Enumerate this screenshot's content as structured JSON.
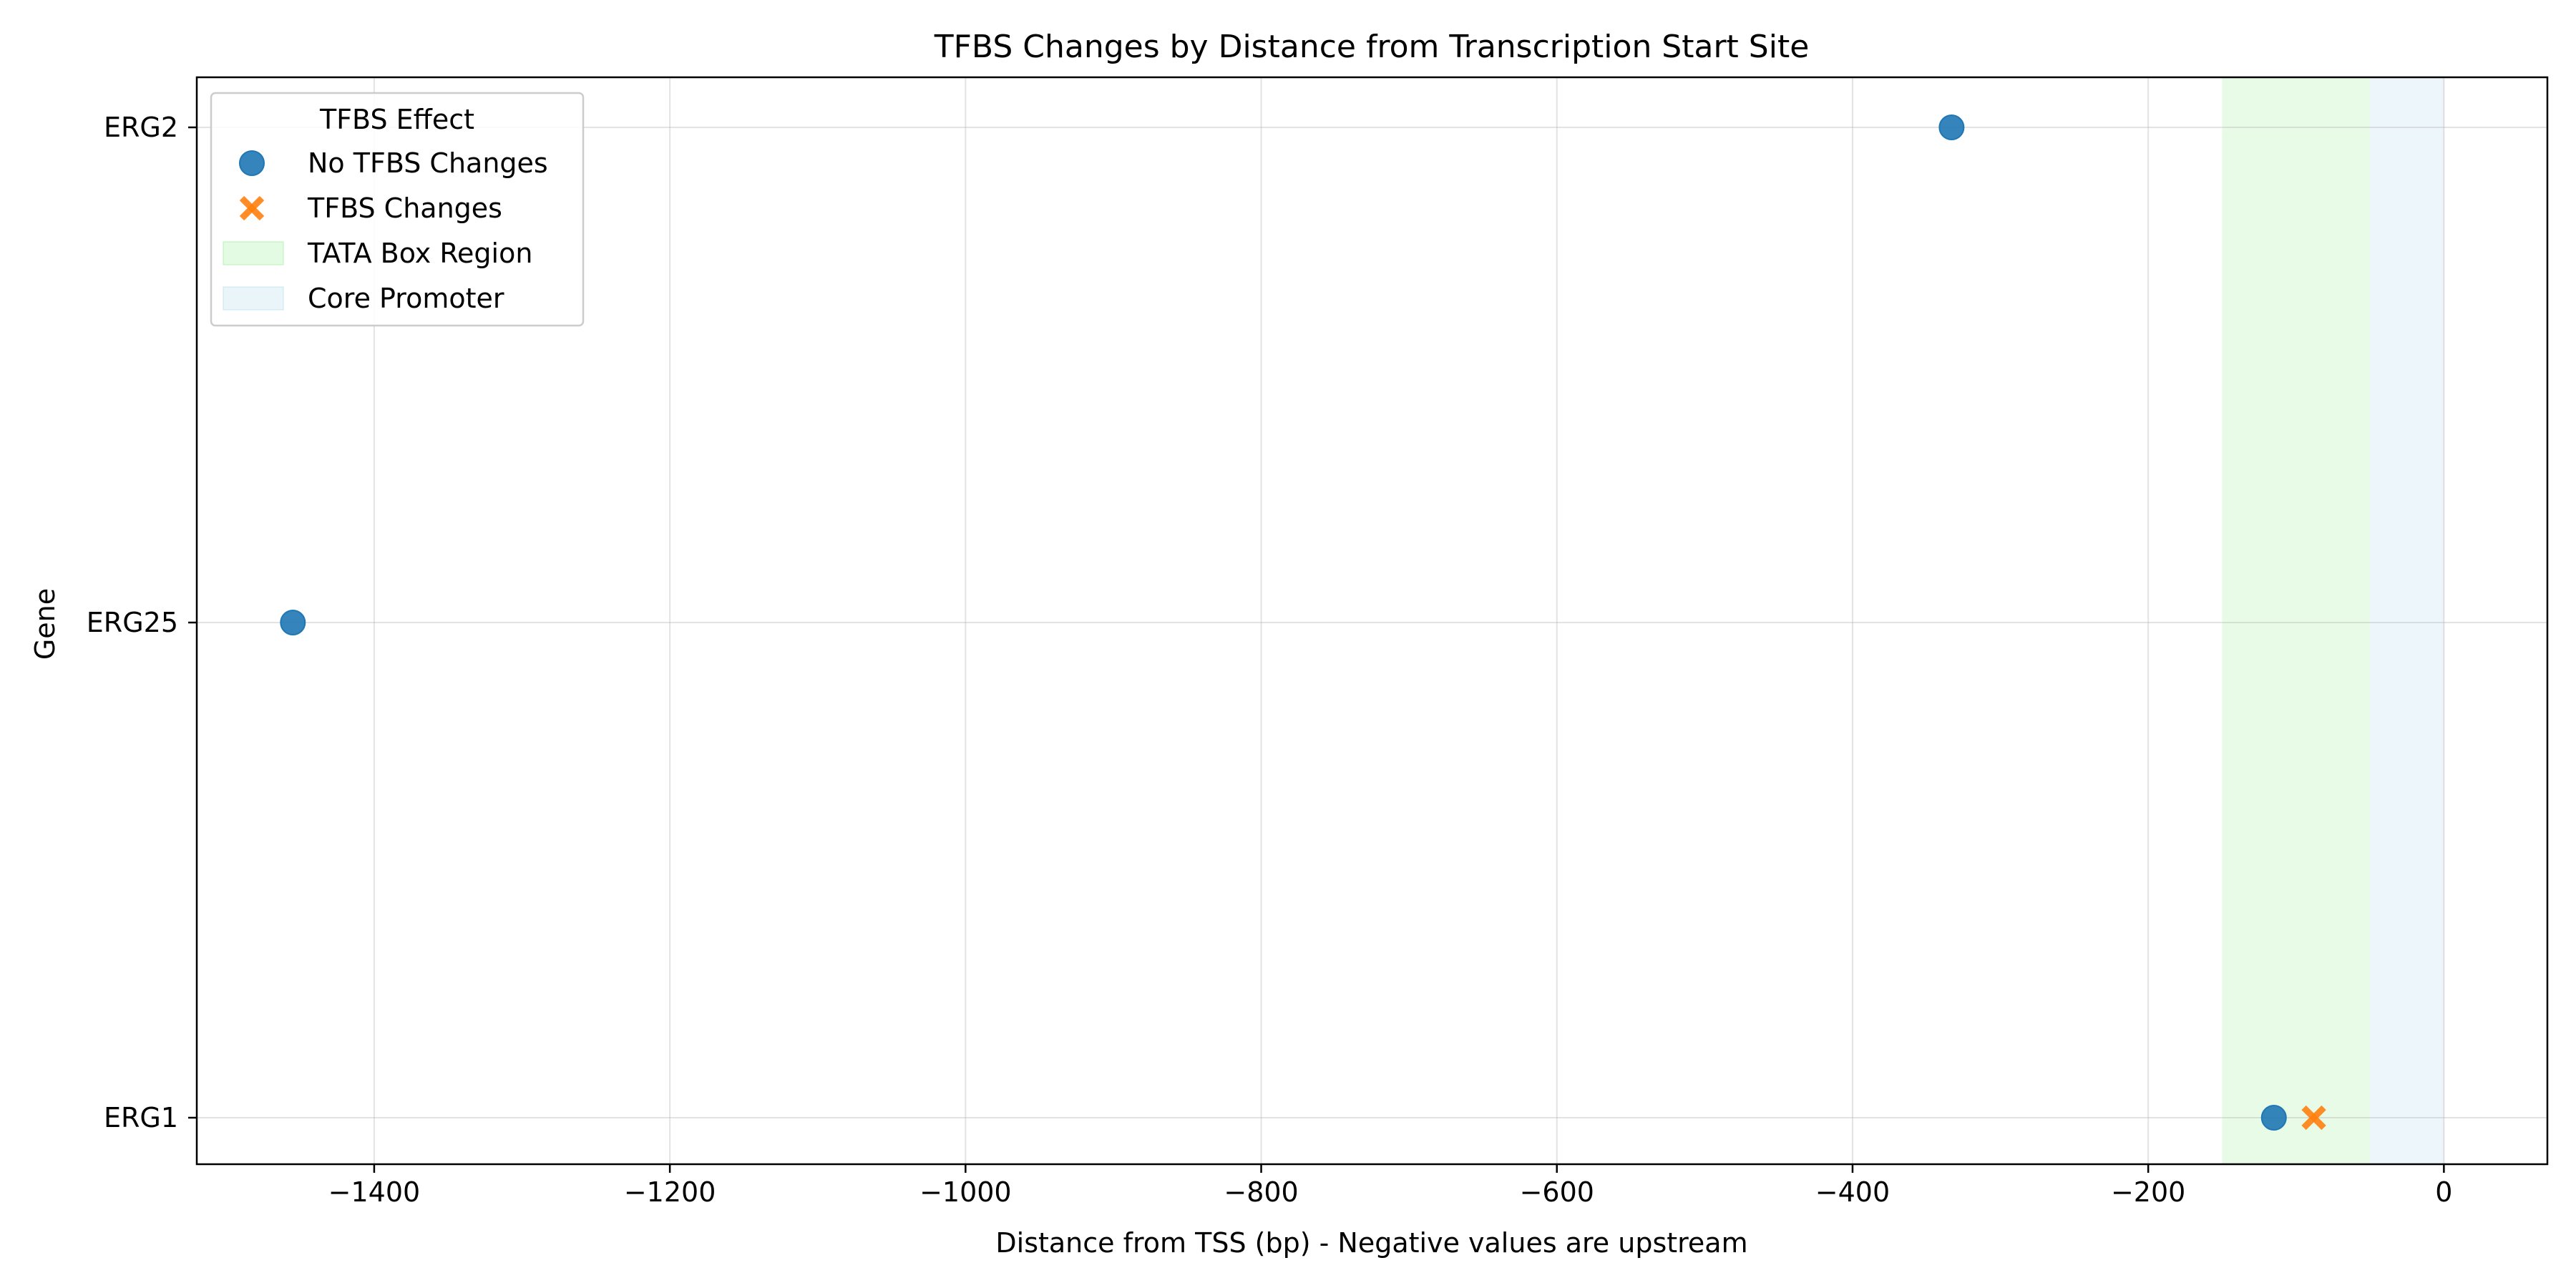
{
  "chart_data": {
    "type": "scatter",
    "title": "TFBS Changes by Distance from Transcription Start Site",
    "xlabel": "Distance from TSS (bp) - Negative values are upstream",
    "ylabel": "Gene",
    "xlim": [
      -1520,
      70
    ],
    "x_ticks": [
      -1400,
      -1200,
      -1000,
      -800,
      -600,
      -400,
      -200,
      0
    ],
    "x_tick_labels": [
      "−1400",
      "−1200",
      "−1000",
      "−800",
      "−600",
      "−400",
      "−200",
      "0"
    ],
    "categories": [
      "ERG2",
      "ERG25",
      "ERG1"
    ],
    "grid": true,
    "legend": {
      "title": "TFBS Effect",
      "placement": "top-left"
    },
    "series": [
      {
        "name": "No TFBS Changes",
        "marker": "circle",
        "color": "#1f77b4",
        "points": [
          {
            "x": -333,
            "category": "ERG2"
          },
          {
            "x": -1455,
            "category": "ERG25"
          },
          {
            "x": -115,
            "category": "ERG1"
          }
        ]
      },
      {
        "name": "TFBS Changes",
        "marker": "x",
        "color": "#ff7f0e",
        "points": [
          {
            "x": -88,
            "category": "ERG1"
          }
        ]
      }
    ],
    "regions": [
      {
        "name": "TATA Box Region",
        "x": [
          -150,
          -50
        ],
        "color": "#90ee90"
      },
      {
        "name": "Core Promoter",
        "x": [
          -50,
          0
        ],
        "color": "#add8e6"
      }
    ]
  }
}
